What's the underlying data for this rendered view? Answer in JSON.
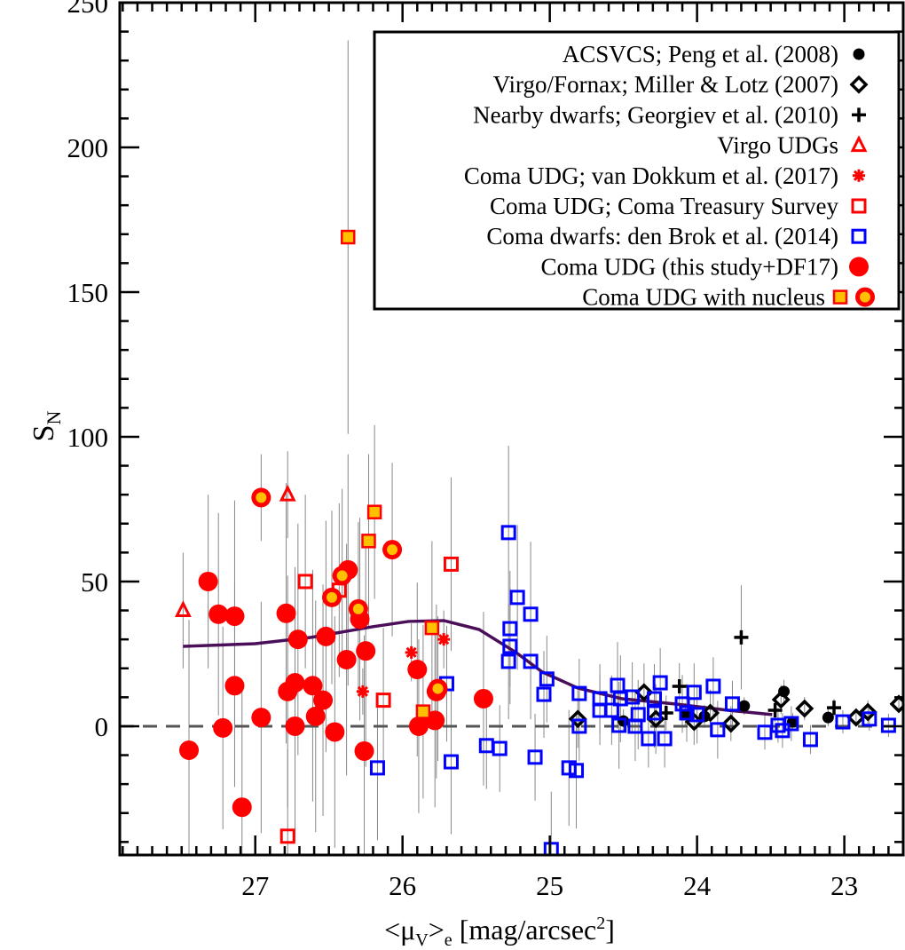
{
  "chart_data": {
    "type": "scatter",
    "title": "",
    "xlabel": "<μV>e [mag/arcsec2]",
    "xlabel_parts": {
      "open": "<μ",
      "sub1": "V",
      "close": ">",
      "sub2": "e",
      "unit": " [mag/arcsec",
      "sup": "2",
      "end": "]"
    },
    "ylabel": "SN",
    "ylabel_parts": {
      "main": "S",
      "sub": "N"
    },
    "xlim": [
      27.92,
      22.6
    ],
    "ylim": [
      -44.5,
      250
    ],
    "xticks": [
      27,
      26,
      25,
      24,
      23
    ],
    "xtick_labels": [
      "27",
      "26",
      "25",
      "24",
      "23"
    ],
    "yticks": [
      0,
      50,
      100,
      150,
      200,
      250
    ],
    "ytick_labels": [
      "0",
      "50",
      "100",
      "150",
      "200",
      "250"
    ],
    "zero_line": 0,
    "legend_position": "top-right",
    "legend": [
      {
        "label": "ACSVCS; Peng et al. (2008)",
        "marker": "dot",
        "color": "#000000"
      },
      {
        "label": "Virgo/Fornax; Miller & Lotz (2007)",
        "marker": "diamond",
        "color": "#000000"
      },
      {
        "label": "Nearby dwarfs; Georgiev et al. (2010)",
        "marker": "plus",
        "color": "#000000"
      },
      {
        "label": "Virgo UDGs",
        "marker": "triangle",
        "color": "#ff0000"
      },
      {
        "label": "Coma UDG; van Dokkum et al. (2017)",
        "marker": "asterisk",
        "color": "#ff0000"
      },
      {
        "label": "Coma UDG; Coma Treasury Survey",
        "marker": "square",
        "color": "#ff0000"
      },
      {
        "label": "Coma dwarfs: den Brok et al. (2014)",
        "marker": "square",
        "color": "#0000ff"
      },
      {
        "label": "Coma UDG (this study+DF17)",
        "marker": "circle",
        "color": "#ff0000"
      },
      {
        "label": "Coma UDG with nucleus",
        "marker": "nucleus",
        "color": "#ff0000"
      }
    ],
    "series": [
      {
        "name": "ACSVCS; Peng et al. (2008)",
        "marker": "dot",
        "points": [
          [
            23.68,
            7,
            3
          ],
          [
            23.41,
            12,
            4
          ],
          [
            23.35,
            1.5,
            3
          ],
          [
            23.11,
            3,
            3
          ],
          [
            24.08,
            4,
            4
          ],
          [
            23.95,
            3.4,
            4
          ],
          [
            24.5,
            1.8,
            4
          ]
        ]
      },
      {
        "name": "Virgo/Fornax; Miller & Lotz (2007)",
        "marker": "diamond",
        "points": [
          [
            24.81,
            2.5,
            10
          ],
          [
            24.36,
            11.7,
            10
          ],
          [
            24.28,
            2.5,
            12
          ],
          [
            24.02,
            1.5,
            8
          ],
          [
            23.91,
            4.6,
            8
          ],
          [
            23.77,
            0.9,
            6
          ],
          [
            23.43,
            9.2,
            5
          ],
          [
            23.27,
            6.1,
            4
          ],
          [
            22.92,
            3,
            3
          ],
          [
            22.84,
            4.9,
            4
          ],
          [
            22.63,
            7.7,
            3
          ]
        ]
      },
      {
        "name": "Nearby dwarfs; Georgiev et al. (2010)",
        "marker": "plus",
        "points": [
          [
            23.7,
            30.7,
            18
          ],
          [
            24.12,
            13.8,
            8
          ],
          [
            24.21,
            4.6,
            6
          ],
          [
            23.47,
            5.5,
            4
          ],
          [
            23.07,
            6.4,
            3
          ]
        ]
      },
      {
        "name": "Virgo UDGs",
        "marker": "triangle",
        "points": [
          [
            27.49,
            40,
            20
          ],
          [
            26.78,
            80,
            15
          ]
        ]
      },
      {
        "name": "Coma UDG; van Dokkum et al. (2017)",
        "marker": "asterisk",
        "points": [
          [
            26.27,
            12,
            8
          ],
          [
            25.94,
            25.5,
            10
          ],
          [
            25.72,
            30,
            10
          ]
        ]
      },
      {
        "name": "Coma UDG; Coma Treasury Survey",
        "marker": "square",
        "points": [
          [
            26.66,
            50,
            30
          ],
          [
            26.13,
            9,
            25
          ],
          [
            25.67,
            56,
            30
          ],
          [
            26.78,
            -38,
            30
          ],
          [
            26.43,
            47,
            30
          ]
        ]
      },
      {
        "name": "Coma dwarfs: den Brok et al. (2014)",
        "marker": "square",
        "points": [
          [
            25.28,
            66.9,
            30
          ],
          [
            25.22,
            44.5,
            25
          ],
          [
            25.27,
            33.7,
            20
          ],
          [
            25.13,
            38.7,
            25
          ],
          [
            25.27,
            27.6,
            20
          ],
          [
            25.28,
            22.4,
            20
          ],
          [
            25.13,
            22.4,
            20
          ],
          [
            25.7,
            14.7,
            20
          ],
          [
            25.02,
            16.3,
            15
          ],
          [
            25.04,
            11,
            15
          ],
          [
            24.8,
            11.3,
            12
          ],
          [
            24.66,
            9.5,
            12
          ],
          [
            24.66,
            5.5,
            12
          ],
          [
            24.58,
            5.5,
            12
          ],
          [
            24.54,
            14.1,
            15
          ],
          [
            24.52,
            9.5,
            15
          ],
          [
            24.53,
            0.3,
            15
          ],
          [
            24.44,
            10.1,
            12
          ],
          [
            24.4,
            4,
            12
          ],
          [
            24.42,
            0,
            12
          ],
          [
            24.33,
            -4.3,
            10
          ],
          [
            24.29,
            9.5,
            12
          ],
          [
            24.29,
            4.6,
            12
          ],
          [
            24.25,
            15,
            12
          ],
          [
            24.22,
            -4.3,
            10
          ],
          [
            24.1,
            7.7,
            10
          ],
          [
            24.07,
            4.6,
            10
          ],
          [
            24.02,
            11.7,
            10
          ],
          [
            24.0,
            4,
            10
          ],
          [
            23.89,
            13.8,
            10
          ],
          [
            23.86,
            -1.2,
            10
          ],
          [
            23.76,
            7.7,
            8
          ],
          [
            23.54,
            -2.1,
            6
          ],
          [
            23.45,
            0.3,
            6
          ],
          [
            23.42,
            -1.5,
            6
          ],
          [
            23.36,
            0.9,
            6
          ],
          [
            23.23,
            -4.6,
            5
          ],
          [
            23.01,
            1.5,
            4
          ],
          [
            22.83,
            2.5,
            4
          ],
          [
            22.7,
            0.3,
            4
          ],
          [
            24.8,
            0,
            12
          ],
          [
            24.87,
            -14.4,
            20
          ],
          [
            24.82,
            -15.3,
            20
          ],
          [
            25.1,
            -10.7,
            15
          ],
          [
            26.17,
            -14.4,
            25
          ],
          [
            25.67,
            -12.3,
            25
          ],
          [
            25.43,
            -6.7,
            15
          ],
          [
            25.34,
            -7.7,
            15
          ],
          [
            24.99,
            -42.6,
            20
          ]
        ]
      },
      {
        "name": "Coma UDG (this study+DF17)",
        "marker": "circle",
        "points": [
          [
            27.45,
            -8.3,
            45
          ],
          [
            27.32,
            50,
            30
          ],
          [
            27.25,
            38.7,
            35
          ],
          [
            27.22,
            -0.6,
            35
          ],
          [
            27.14,
            38,
            40
          ],
          [
            27.14,
            14,
            35
          ],
          [
            27.09,
            -28,
            40
          ],
          [
            26.96,
            3,
            40
          ],
          [
            26.79,
            39,
            45
          ],
          [
            26.78,
            12,
            40
          ],
          [
            26.73,
            0,
            40
          ],
          [
            26.71,
            30,
            40
          ],
          [
            26.73,
            15,
            40
          ],
          [
            26.61,
            14,
            40
          ],
          [
            26.59,
            3.4,
            40
          ],
          [
            26.54,
            9,
            40
          ],
          [
            26.52,
            31,
            40
          ],
          [
            26.46,
            -2,
            40
          ],
          [
            26.38,
            23,
            40
          ],
          [
            26.37,
            54,
            40
          ],
          [
            26.29,
            37,
            35
          ],
          [
            26.25,
            26,
            40
          ],
          [
            26.26,
            -8.6,
            40
          ],
          [
            25.9,
            19.6,
            30
          ],
          [
            25.89,
            0,
            30
          ],
          [
            25.78,
            2,
            30
          ],
          [
            25.77,
            12,
            30
          ],
          [
            25.45,
            9.5,
            30
          ]
        ]
      },
      {
        "name": "Coma UDG with nucleus (circle)",
        "marker": "nucleus",
        "points": [
          [
            26.96,
            79,
            15
          ],
          [
            26.48,
            44.5,
            30
          ],
          [
            26.41,
            52,
            30
          ],
          [
            26.3,
            40.5,
            30
          ],
          [
            26.07,
            61,
            30
          ],
          [
            25.76,
            13,
            25
          ]
        ]
      },
      {
        "name": "Coma UDG with nucleus (square)",
        "marker": "nucleus-square",
        "points": [
          [
            26.37,
            169,
            68
          ],
          [
            26.19,
            74,
            30
          ],
          [
            26.23,
            64,
            30
          ],
          [
            25.8,
            34,
            30
          ],
          [
            25.86,
            5,
            30
          ]
        ]
      }
    ],
    "trend_line": {
      "color": "#4b0f5a",
      "x": [
        27.49,
        27.0,
        26.62,
        26.2,
        25.96,
        25.72,
        25.48,
        25.23,
        25.05,
        24.81,
        24.51,
        24.15,
        23.79,
        23.49
      ],
      "y": [
        27.6,
        28.5,
        30.7,
        34.4,
        36.2,
        36.5,
        33.4,
        25.5,
        18.7,
        13.2,
        9.5,
        7.7,
        5.5,
        4.0
      ]
    }
  }
}
